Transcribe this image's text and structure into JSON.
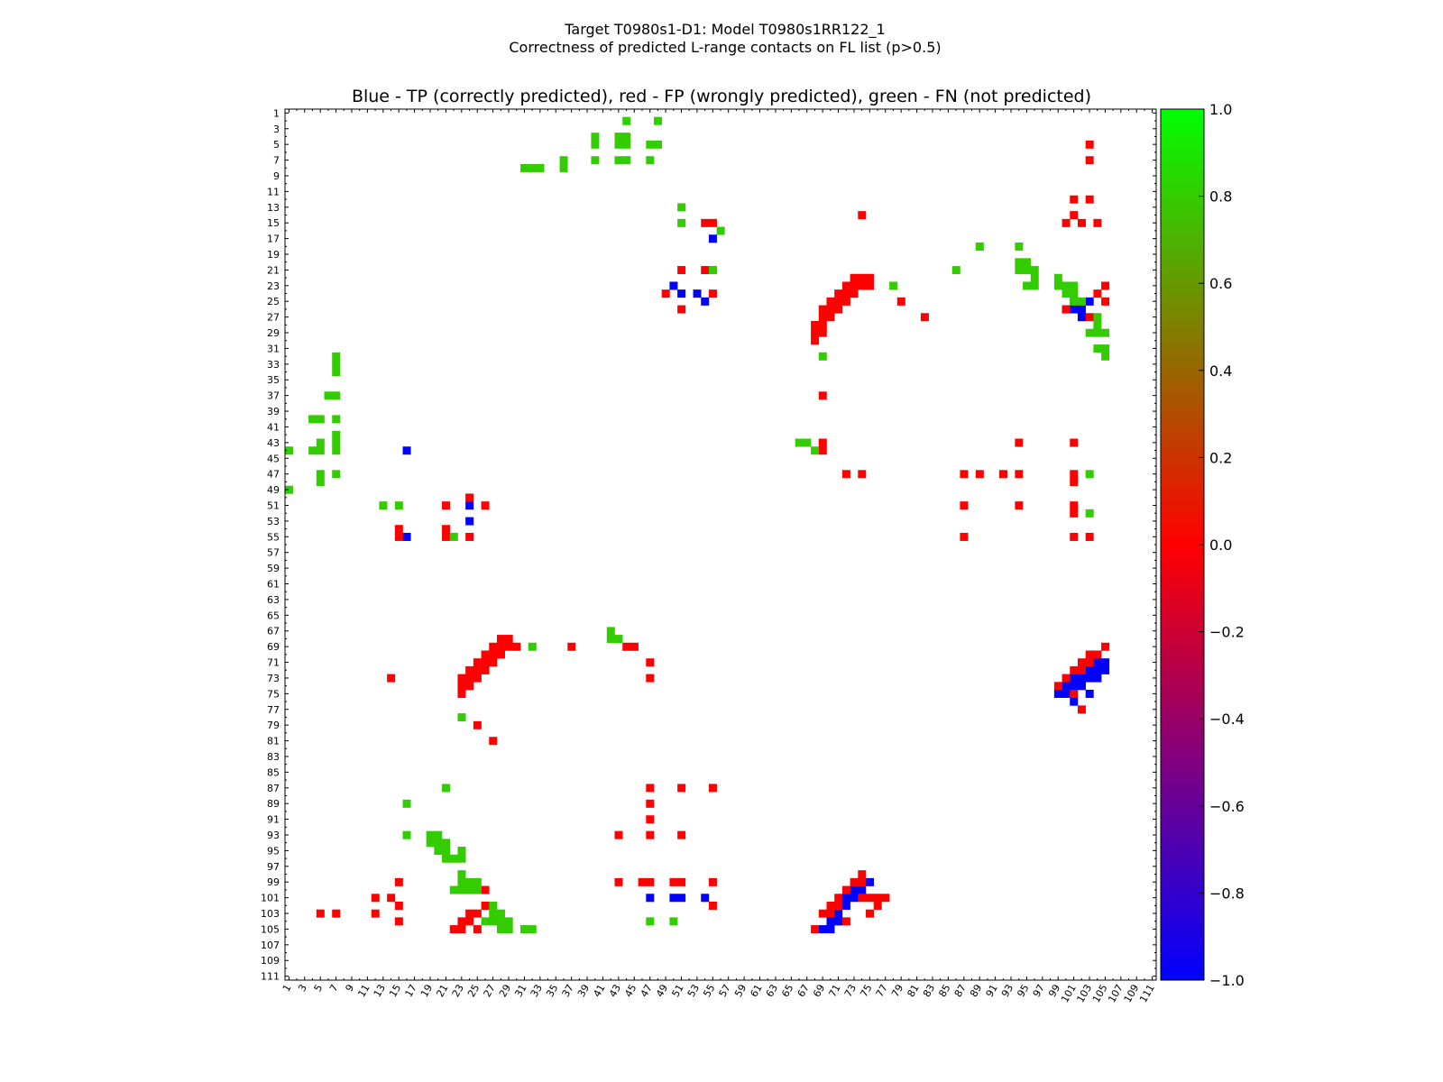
{
  "figure": {
    "title_line1": "Target T0980s1-D1: Model T0980s1RR122_1",
    "title_line2": "Correctness of predicted L-range contacts on FL list (p>0.5)"
  },
  "chart_data": {
    "type": "heatmap",
    "title": "Blue - TP (correctly predicted), red - FP (wrongly predicted), green - FN (not predicted)",
    "xlabel": "",
    "ylabel": "",
    "xlim": [
      1,
      111
    ],
    "ylim": [
      1,
      111
    ],
    "x_tick_labels": [
      "1",
      "3",
      "5",
      "7",
      "9",
      "11",
      "13",
      "15",
      "17",
      "19",
      "21",
      "23",
      "25",
      "27",
      "29",
      "31",
      "33",
      "35",
      "37",
      "39",
      "41",
      "43",
      "45",
      "47",
      "49",
      "51",
      "53",
      "55",
      "57",
      "59",
      "61",
      "63",
      "65",
      "67",
      "69",
      "71",
      "73",
      "75",
      "77",
      "79",
      "81",
      "83",
      "85",
      "87",
      "89",
      "91",
      "93",
      "95",
      "97",
      "99",
      "101",
      "103",
      "105",
      "107",
      "109",
      "111"
    ],
    "y_tick_labels": [
      "1",
      "3",
      "5",
      "7",
      "9",
      "11",
      "13",
      "15",
      "17",
      "19",
      "21",
      "23",
      "25",
      "27",
      "29",
      "31",
      "33",
      "35",
      "37",
      "39",
      "41",
      "43",
      "45",
      "47",
      "49",
      "51",
      "53",
      "55",
      "57",
      "59",
      "61",
      "63",
      "65",
      "67",
      "69",
      "71",
      "73",
      "75",
      "77",
      "79",
      "81",
      "83",
      "85",
      "87",
      "89",
      "91",
      "93",
      "95",
      "97",
      "99",
      "101",
      "103",
      "105",
      "107",
      "109",
      "111"
    ],
    "colors": {
      "TP": "#0000ff",
      "FP": "#ff0000",
      "FN": "#33cc00"
    },
    "colorbar": {
      "range": [
        -1.0,
        1.0
      ],
      "tick_labels": [
        "1.0",
        "0.8",
        "0.6",
        "0.4",
        "0.2",
        "0.0",
        "−0.2",
        "−0.4",
        "−0.6",
        "−0.8",
        "−1.0"
      ],
      "tick_values": [
        1.0,
        0.8,
        0.6,
        0.4,
        0.2,
        0.0,
        -0.2,
        -0.4,
        -0.6,
        -0.8,
        -1.0
      ],
      "stops": [
        {
          "value": -1.0,
          "color": "#0000ff"
        },
        {
          "value": 0.0,
          "color": "#ff0000"
        },
        {
          "value": 1.0,
          "color": "#00ff00"
        }
      ]
    },
    "cells": {
      "TP": [
        [
          17,
          55
        ],
        [
          24,
          51
        ],
        [
          25,
          54
        ],
        [
          24,
          53
        ],
        [
          23,
          50
        ],
        [
          25,
          101
        ],
        [
          27,
          102
        ],
        [
          25,
          103
        ],
        [
          26,
          102
        ],
        [
          26,
          100
        ],
        [
          26,
          101
        ],
        [
          44,
          16
        ],
        [
          51,
          24
        ],
        [
          53,
          24
        ],
        [
          55,
          16
        ],
        [
          71,
          104
        ],
        [
          71,
          105
        ],
        [
          72,
          103
        ],
        [
          72,
          104
        ],
        [
          72,
          105
        ],
        [
          73,
          101
        ],
        [
          73,
          102
        ],
        [
          73,
          103
        ],
        [
          73,
          104
        ],
        [
          74,
          100
        ],
        [
          74,
          101
        ],
        [
          74,
          102
        ],
        [
          75,
          99
        ],
        [
          75,
          100
        ],
        [
          75,
          103
        ],
        [
          76,
          101
        ],
        [
          99,
          75
        ],
        [
          100,
          74
        ],
        [
          100,
          73
        ],
        [
          101,
          72
        ],
        [
          101,
          73
        ],
        [
          102,
          72
        ],
        [
          103,
          71
        ],
        [
          104,
          70
        ],
        [
          104,
          71
        ],
        [
          105,
          69
        ],
        [
          105,
          70
        ],
        [
          101,
          47
        ],
        [
          101,
          50
        ],
        [
          101,
          51
        ],
        [
          101,
          54
        ]
      ],
      "FP": [
        [
          5,
          103
        ],
        [
          7,
          103
        ],
        [
          12,
          101
        ],
        [
          12,
          103
        ],
        [
          14,
          101
        ],
        [
          15,
          100
        ],
        [
          15,
          102
        ],
        [
          15,
          104
        ],
        [
          14,
          74
        ],
        [
          15,
          54
        ],
        [
          15,
          55
        ],
        [
          21,
          51
        ],
        [
          21,
          54
        ],
        [
          21,
          55
        ],
        [
          24,
          49
        ],
        [
          24,
          55
        ],
        [
          26,
          51
        ],
        [
          23,
          105
        ],
        [
          24,
          104
        ],
        [
          25,
          105
        ],
        [
          26,
          100
        ],
        [
          27,
          103
        ],
        [
          27,
          82
        ],
        [
          25,
          79
        ],
        [
          22,
          73
        ],
        [
          22,
          74
        ],
        [
          22,
          75
        ],
        [
          23,
          72
        ],
        [
          23,
          73
        ],
        [
          23,
          74
        ],
        [
          23,
          75
        ],
        [
          24,
          71
        ],
        [
          24,
          72
        ],
        [
          24,
          73
        ],
        [
          25,
          70
        ],
        [
          25,
          71
        ],
        [
          25,
          72
        ],
        [
          26,
          69
        ],
        [
          26,
          70
        ],
        [
          26,
          71
        ],
        [
          27,
          69
        ],
        [
          27,
          70
        ],
        [
          28,
          68
        ],
        [
          28,
          69
        ],
        [
          29,
          68
        ],
        [
          29,
          69
        ],
        [
          30,
          68
        ],
        [
          37,
          69
        ],
        [
          43,
          69
        ],
        [
          44,
          69
        ],
        [
          43,
          94
        ],
        [
          43,
          101
        ],
        [
          47,
          72
        ],
        [
          47,
          74
        ],
        [
          47,
          87
        ],
        [
          47,
          89
        ],
        [
          47,
          92
        ],
        [
          47,
          94
        ],
        [
          47,
          101
        ],
        [
          48,
          101
        ],
        [
          51,
          87
        ],
        [
          51,
          94
        ],
        [
          51,
          101
        ],
        [
          52,
          101
        ],
        [
          55,
          87
        ],
        [
          55,
          101
        ],
        [
          55,
          103
        ],
        [
          50,
          24
        ],
        [
          51,
          21
        ],
        [
          51,
          26
        ],
        [
          54,
          15
        ],
        [
          55,
          15
        ],
        [
          54,
          21
        ],
        [
          55,
          21
        ],
        [
          55,
          24
        ],
        [
          68,
          28
        ],
        [
          68,
          29
        ],
        [
          69,
          27
        ],
        [
          69,
          28
        ],
        [
          69,
          29
        ],
        [
          69,
          30
        ],
        [
          70,
          26
        ],
        [
          70,
          27
        ],
        [
          70,
          28
        ],
        [
          71,
          25
        ],
        [
          71,
          26
        ],
        [
          71,
          27
        ],
        [
          72,
          24
        ],
        [
          72,
          25
        ],
        [
          72,
          26
        ],
        [
          73,
          23
        ],
        [
          73,
          24
        ],
        [
          73,
          25
        ],
        [
          74,
          23
        ],
        [
          74,
          24
        ],
        [
          75,
          23
        ],
        [
          73,
          14
        ],
        [
          69,
          37
        ],
        [
          69,
          44
        ],
        [
          69,
          45
        ],
        [
          71,
          47
        ],
        [
          73,
          47
        ],
        [
          69,
          105
        ],
        [
          70,
          103
        ],
        [
          70,
          104
        ],
        [
          71,
          102
        ],
        [
          71,
          103
        ],
        [
          72,
          101
        ],
        [
          72,
          102
        ],
        [
          73,
          100
        ],
        [
          74,
          99
        ],
        [
          75,
          101
        ],
        [
          77,
          102
        ],
        [
          79,
          25
        ],
        [
          81,
          27
        ],
        [
          87,
          47
        ],
        [
          87,
          51
        ],
        [
          87,
          55
        ],
        [
          89,
          47
        ],
        [
          91,
          47
        ],
        [
          93,
          43
        ],
        [
          93,
          47
        ],
        [
          93,
          51
        ],
        [
          99,
          15
        ],
        [
          99,
          43
        ],
        [
          99,
          46
        ],
        [
          99,
          47
        ],
        [
          99,
          50
        ],
        [
          99,
          51
        ],
        [
          99,
          55
        ],
        [
          100,
          26
        ],
        [
          101,
          12
        ],
        [
          101,
          14
        ],
        [
          102,
          15
        ],
        [
          102,
          26
        ],
        [
          102,
          55
        ],
        [
          103,
          5
        ],
        [
          103,
          7
        ],
        [
          103,
          12
        ],
        [
          103,
          24
        ],
        [
          103,
          25
        ],
        [
          104,
          15
        ],
        [
          104,
          23
        ],
        [
          104,
          24
        ],
        [
          105,
          22
        ],
        [
          105,
          23
        ],
        [
          105,
          25
        ],
        [
          98,
          74
        ],
        [
          99,
          73
        ],
        [
          99,
          74
        ],
        [
          100,
          72
        ],
        [
          101,
          71
        ],
        [
          101,
          74
        ],
        [
          101,
          75
        ],
        [
          101,
          76
        ],
        [
          101,
          77
        ],
        [
          102,
          70
        ],
        [
          102,
          71
        ],
        [
          102,
          76
        ],
        [
          103,
          69
        ],
        [
          103,
          70
        ],
        [
          103,
          75
        ],
        [
          104,
          72
        ],
        [
          105,
          68
        ]
      ],
      "FN": [
        [
          2,
          44
        ],
        [
          2,
          48
        ],
        [
          4,
          40
        ],
        [
          4,
          43
        ],
        [
          4,
          44
        ],
        [
          5,
          40
        ],
        [
          5,
          43
        ],
        [
          5,
          44
        ],
        [
          5,
          47
        ],
        [
          5,
          48
        ],
        [
          7,
          36
        ],
        [
          7,
          40
        ],
        [
          7,
          43
        ],
        [
          7,
          44
        ],
        [
          7,
          47
        ],
        [
          8,
          31
        ],
        [
          8,
          32
        ],
        [
          8,
          33
        ],
        [
          8,
          36
        ],
        [
          13,
          51
        ],
        [
          15,
          51
        ],
        [
          16,
          56
        ],
        [
          21,
          55
        ],
        [
          18,
          89
        ],
        [
          18,
          94
        ],
        [
          20,
          94
        ],
        [
          20,
          95
        ],
        [
          21,
          86
        ],
        [
          21,
          94
        ],
        [
          21,
          95
        ],
        [
          21,
          96
        ],
        [
          22,
          96
        ],
        [
          23,
          96
        ],
        [
          23,
          95
        ],
        [
          22,
          99
        ],
        [
          23,
          99
        ],
        [
          23,
          100
        ],
        [
          24,
          100
        ],
        [
          24,
          101
        ],
        [
          23,
          101
        ],
        [
          25,
          101
        ],
        [
          25,
          102
        ],
        [
          27,
          104
        ],
        [
          28,
          104
        ],
        [
          29,
          103
        ],
        [
          29,
          104
        ],
        [
          29,
          105
        ],
        [
          31,
          104
        ],
        [
          31,
          105
        ],
        [
          32,
          105
        ],
        [
          23,
          78
        ],
        [
          32,
          69
        ],
        [
          32,
          7
        ],
        [
          33,
          7
        ],
        [
          34,
          7
        ],
        [
          37,
          6
        ],
        [
          37,
          7
        ],
        [
          40,
          4
        ],
        [
          40,
          5
        ],
        [
          40,
          7
        ],
        [
          42,
          7
        ],
        [
          43,
          7
        ],
        [
          43,
          5
        ],
        [
          43,
          66
        ],
        [
          43,
          67
        ],
        [
          44,
          1
        ],
        [
          44,
          4
        ],
        [
          44,
          5
        ],
        [
          44,
          7
        ],
        [
          44,
          68
        ],
        [
          47,
          5
        ],
        [
          47,
          7
        ],
        [
          48,
          5
        ],
        [
          49,
          1
        ],
        [
          47,
          103
        ],
        [
          52,
          103
        ],
        [
          51,
          13
        ],
        [
          51,
          15
        ],
        [
          55,
          22
        ],
        [
          67,
          42
        ],
        [
          68,
          42
        ],
        [
          68,
          43
        ],
        [
          69,
          32
        ],
        [
          78,
          23
        ],
        [
          87,
          21
        ],
        [
          89,
          16
        ],
        [
          93,
          16
        ],
        [
          93,
          19
        ],
        [
          93,
          20
        ],
        [
          94,
          19
        ],
        [
          94,
          20
        ],
        [
          94,
          21
        ],
        [
          95,
          20
        ],
        [
          95,
          21
        ],
        [
          95,
          23
        ],
        [
          96,
          21
        ],
        [
          96,
          22
        ],
        [
          96,
          23
        ],
        [
          98,
          23
        ],
        [
          99,
          23
        ],
        [
          99,
          24
        ],
        [
          99,
          25
        ],
        [
          100,
          22
        ],
        [
          100,
          23
        ],
        [
          100,
          24
        ],
        [
          100,
          25
        ],
        [
          102,
          27
        ],
        [
          103,
          27
        ],
        [
          103,
          28
        ],
        [
          104,
          26
        ],
        [
          104,
          27
        ],
        [
          104,
          28
        ],
        [
          104,
          29
        ],
        [
          105,
          28
        ],
        [
          105,
          29
        ],
        [
          104,
          47
        ],
        [
          104,
          50
        ],
        [
          105,
          31
        ],
        [
          105,
          32
        ]
      ]
    }
  }
}
